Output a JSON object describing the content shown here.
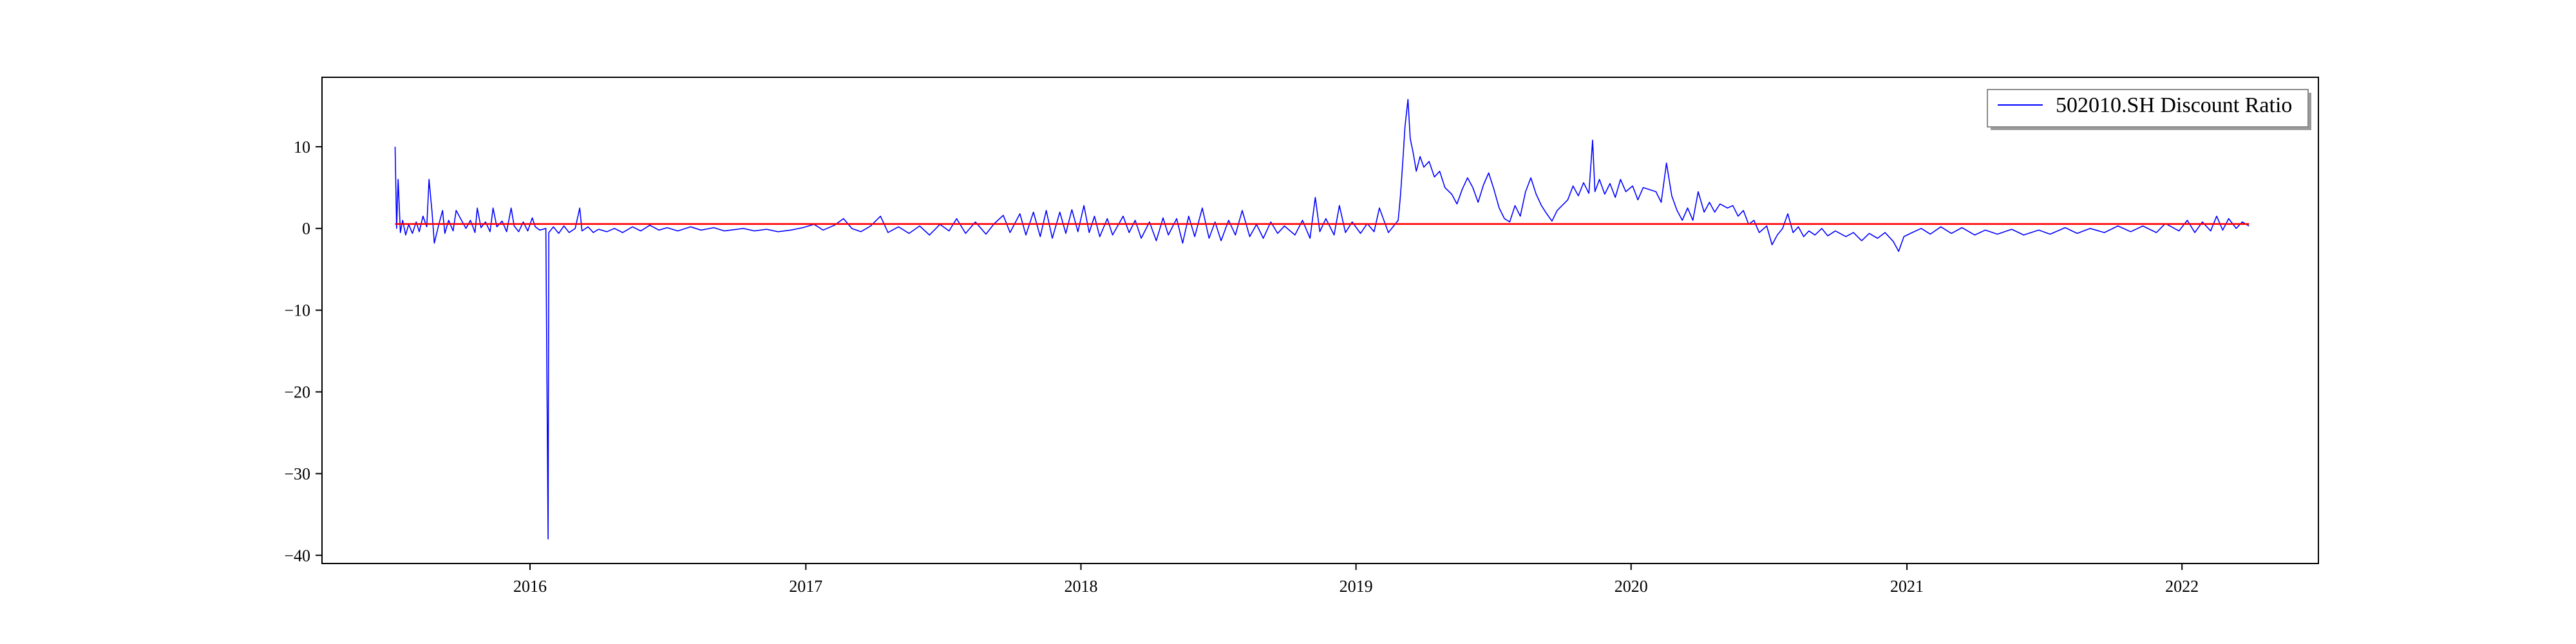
{
  "chart_data": {
    "type": "line",
    "title": "",
    "xlabel": "",
    "ylabel": "",
    "x_ticks": [
      "2016",
      "2017",
      "2018",
      "2019",
      "2020",
      "2021",
      "2022"
    ],
    "y_ticks": [
      "10",
      "0",
      "−10",
      "−20",
      "−30",
      "−40"
    ],
    "xlim": [
      "2015-03-31",
      "2022-07-01"
    ],
    "ylim": [
      -41,
      18.5
    ],
    "grid": false,
    "legend_position": "top-right",
    "series": [
      {
        "name": "502010.SH Discount Ratio",
        "color": "#0000ff",
        "points": [
          [
            "2015-07-06",
            10.0
          ],
          [
            "2015-07-08",
            0.0
          ],
          [
            "2015-07-10",
            6.0
          ],
          [
            "2015-07-13",
            -0.5
          ],
          [
            "2015-07-16",
            1.0
          ],
          [
            "2015-07-20",
            -0.8
          ],
          [
            "2015-07-24",
            0.5
          ],
          [
            "2015-07-29",
            -0.6
          ],
          [
            "2015-08-03",
            0.8
          ],
          [
            "2015-08-07",
            -0.4
          ],
          [
            "2015-08-12",
            1.5
          ],
          [
            "2015-08-17",
            0.2
          ],
          [
            "2015-08-20",
            6.0
          ],
          [
            "2015-08-24",
            2.0
          ],
          [
            "2015-08-27",
            -1.8
          ],
          [
            "2015-09-02",
            0.5
          ],
          [
            "2015-09-07",
            2.2
          ],
          [
            "2015-09-10",
            -0.6
          ],
          [
            "2015-09-15",
            1.0
          ],
          [
            "2015-09-21",
            -0.3
          ],
          [
            "2015-09-25",
            2.2
          ],
          [
            "2015-10-08",
            0.0
          ],
          [
            "2015-10-14",
            1.0
          ],
          [
            "2015-10-20",
            -0.5
          ],
          [
            "2015-10-23",
            2.5
          ],
          [
            "2015-10-28",
            0.1
          ],
          [
            "2015-11-03",
            0.8
          ],
          [
            "2015-11-09",
            -0.4
          ],
          [
            "2015-11-13",
            2.5
          ],
          [
            "2015-11-18",
            0.2
          ],
          [
            "2015-11-25",
            0.9
          ],
          [
            "2015-12-01",
            -0.4
          ],
          [
            "2015-12-07",
            2.5
          ],
          [
            "2015-12-11",
            0.3
          ],
          [
            "2015-12-17",
            -0.4
          ],
          [
            "2015-12-23",
            0.8
          ],
          [
            "2015-12-29",
            -0.3
          ],
          [
            "2016-01-04",
            1.3
          ],
          [
            "2016-01-08",
            0.2
          ],
          [
            "2016-01-14",
            -0.2
          ],
          [
            "2016-01-22",
            0.0
          ],
          [
            "2016-01-25",
            -38.0
          ],
          [
            "2016-01-26",
            -0.5
          ],
          [
            "2016-02-01",
            0.2
          ],
          [
            "2016-02-08",
            -0.6
          ],
          [
            "2016-02-15",
            0.3
          ],
          [
            "2016-02-22",
            -0.5
          ],
          [
            "2016-03-01",
            0.0
          ],
          [
            "2016-03-07",
            2.5
          ],
          [
            "2016-03-10",
            -0.3
          ],
          [
            "2016-03-18",
            0.2
          ],
          [
            "2016-03-25",
            -0.5
          ],
          [
            "2016-04-01",
            -0.1
          ],
          [
            "2016-04-12",
            -0.4
          ],
          [
            "2016-04-22",
            0.0
          ],
          [
            "2016-05-03",
            -0.5
          ],
          [
            "2016-05-16",
            0.2
          ],
          [
            "2016-05-27",
            -0.3
          ],
          [
            "2016-06-08",
            0.4
          ],
          [
            "2016-06-20",
            -0.2
          ],
          [
            "2016-07-01",
            0.1
          ],
          [
            "2016-07-15",
            -0.3
          ],
          [
            "2016-08-01",
            0.2
          ],
          [
            "2016-08-15",
            -0.2
          ],
          [
            "2016-09-01",
            0.1
          ],
          [
            "2016-09-15",
            -0.3
          ],
          [
            "2016-10-10",
            0.0
          ],
          [
            "2016-10-25",
            -0.3
          ],
          [
            "2016-11-10",
            -0.1
          ],
          [
            "2016-11-25",
            -0.4
          ],
          [
            "2016-12-12",
            -0.2
          ],
          [
            "2016-12-28",
            0.1
          ],
          [
            "2017-01-12",
            0.5
          ],
          [
            "2017-01-24",
            -0.2
          ],
          [
            "2017-02-08",
            0.4
          ],
          [
            "2017-02-20",
            1.2
          ],
          [
            "2017-03-03",
            0.0
          ],
          [
            "2017-03-15",
            -0.4
          ],
          [
            "2017-03-28",
            0.3
          ],
          [
            "2017-04-10",
            1.5
          ],
          [
            "2017-04-20",
            -0.5
          ],
          [
            "2017-05-04",
            0.2
          ],
          [
            "2017-05-18",
            -0.6
          ],
          [
            "2017-06-01",
            0.3
          ],
          [
            "2017-06-14",
            -0.8
          ],
          [
            "2017-06-28",
            0.5
          ],
          [
            "2017-07-10",
            -0.3
          ],
          [
            "2017-07-20",
            1.2
          ],
          [
            "2017-08-01",
            -0.6
          ],
          [
            "2017-08-14",
            0.8
          ],
          [
            "2017-08-28",
            -0.7
          ],
          [
            "2017-09-08",
            0.6
          ],
          [
            "2017-09-20",
            1.6
          ],
          [
            "2017-09-29",
            -0.5
          ],
          [
            "2017-10-12",
            1.8
          ],
          [
            "2017-10-20",
            -0.8
          ],
          [
            "2017-10-30",
            2.0
          ],
          [
            "2017-11-08",
            -1.0
          ],
          [
            "2017-11-16",
            2.2
          ],
          [
            "2017-11-24",
            -1.2
          ],
          [
            "2017-12-04",
            2.0
          ],
          [
            "2017-12-12",
            -0.6
          ],
          [
            "2017-12-20",
            2.3
          ],
          [
            "2017-12-28",
            -0.4
          ],
          [
            "2018-01-05",
            2.8
          ],
          [
            "2018-01-12",
            -0.5
          ],
          [
            "2018-01-19",
            1.5
          ],
          [
            "2018-01-26",
            -1.0
          ],
          [
            "2018-02-05",
            1.2
          ],
          [
            "2018-02-12",
            -0.8
          ],
          [
            "2018-02-26",
            1.5
          ],
          [
            "2018-03-06",
            -0.5
          ],
          [
            "2018-03-14",
            1.0
          ],
          [
            "2018-03-22",
            -1.2
          ],
          [
            "2018-04-02",
            0.8
          ],
          [
            "2018-04-11",
            -1.5
          ],
          [
            "2018-04-20",
            1.3
          ],
          [
            "2018-04-27",
            -0.8
          ],
          [
            "2018-05-08",
            1.2
          ],
          [
            "2018-05-16",
            -1.8
          ],
          [
            "2018-05-24",
            1.5
          ],
          [
            "2018-06-01",
            -1.0
          ],
          [
            "2018-06-11",
            2.5
          ],
          [
            "2018-06-20",
            -1.2
          ],
          [
            "2018-06-28",
            0.8
          ],
          [
            "2018-07-06",
            -1.5
          ],
          [
            "2018-07-16",
            1.0
          ],
          [
            "2018-07-25",
            -0.8
          ],
          [
            "2018-08-03",
            2.2
          ],
          [
            "2018-08-13",
            -1.0
          ],
          [
            "2018-08-22",
            0.5
          ],
          [
            "2018-08-31",
            -1.2
          ],
          [
            "2018-09-10",
            0.8
          ],
          [
            "2018-09-19",
            -0.6
          ],
          [
            "2018-09-28",
            0.3
          ],
          [
            "2018-10-12",
            -0.8
          ],
          [
            "2018-10-22",
            1.0
          ],
          [
            "2018-11-01",
            -1.2
          ],
          [
            "2018-11-08",
            3.8
          ],
          [
            "2018-11-14",
            -0.4
          ],
          [
            "2018-11-22",
            1.2
          ],
          [
            "2018-12-03",
            -0.8
          ],
          [
            "2018-12-10",
            2.8
          ],
          [
            "2018-12-18",
            -0.5
          ],
          [
            "2018-12-27",
            0.8
          ],
          [
            "2019-01-07",
            -0.6
          ],
          [
            "2019-01-16",
            0.6
          ],
          [
            "2019-01-25",
            -0.4
          ],
          [
            "2019-02-01",
            2.5
          ],
          [
            "2019-02-13",
            -0.5
          ],
          [
            "2019-02-20",
            0.3
          ],
          [
            "2019-02-26",
            1.0
          ],
          [
            "2019-03-01",
            4.0
          ],
          [
            "2019-03-04",
            8.0
          ],
          [
            "2019-03-07",
            12.5
          ],
          [
            "2019-03-11",
            15.8
          ],
          [
            "2019-03-14",
            11.0
          ],
          [
            "2019-03-18",
            9.2
          ],
          [
            "2019-03-22",
            7.0
          ],
          [
            "2019-03-27",
            8.8
          ],
          [
            "2019-04-01",
            7.5
          ],
          [
            "2019-04-08",
            8.2
          ],
          [
            "2019-04-15",
            6.3
          ],
          [
            "2019-04-22",
            7.0
          ],
          [
            "2019-04-29",
            5.0
          ],
          [
            "2019-05-08",
            4.2
          ],
          [
            "2019-05-15",
            3.0
          ],
          [
            "2019-05-22",
            4.8
          ],
          [
            "2019-05-29",
            6.2
          ],
          [
            "2019-06-05",
            5.0
          ],
          [
            "2019-06-12",
            3.2
          ],
          [
            "2019-06-19",
            5.3
          ],
          [
            "2019-06-26",
            6.8
          ],
          [
            "2019-07-03",
            4.8
          ],
          [
            "2019-07-10",
            2.5
          ],
          [
            "2019-07-17",
            1.2
          ],
          [
            "2019-07-24",
            0.8
          ],
          [
            "2019-07-31",
            2.8
          ],
          [
            "2019-08-07",
            1.5
          ],
          [
            "2019-08-14",
            4.5
          ],
          [
            "2019-08-21",
            6.2
          ],
          [
            "2019-08-28",
            4.2
          ],
          [
            "2019-09-04",
            2.8
          ],
          [
            "2019-09-11",
            1.8
          ],
          [
            "2019-09-18",
            0.9
          ],
          [
            "2019-09-25",
            2.2
          ],
          [
            "2019-10-09",
            3.5
          ],
          [
            "2019-10-16",
            5.2
          ],
          [
            "2019-10-23",
            4.0
          ],
          [
            "2019-10-30",
            5.6
          ],
          [
            "2019-11-06",
            4.3
          ],
          [
            "2019-11-11",
            10.8
          ],
          [
            "2019-11-14",
            4.5
          ],
          [
            "2019-11-20",
            6.0
          ],
          [
            "2019-11-27",
            4.2
          ],
          [
            "2019-12-04",
            5.5
          ],
          [
            "2019-12-11",
            3.8
          ],
          [
            "2019-12-18",
            6.0
          ],
          [
            "2019-12-25",
            4.5
          ],
          [
            "2020-01-03",
            5.2
          ],
          [
            "2020-01-10",
            3.5
          ],
          [
            "2020-01-17",
            5.0
          ],
          [
            "2020-02-03",
            4.5
          ],
          [
            "2020-02-10",
            3.2
          ],
          [
            "2020-02-17",
            8.0
          ],
          [
            "2020-02-24",
            4.0
          ],
          [
            "2020-03-02",
            2.2
          ],
          [
            "2020-03-09",
            1.0
          ],
          [
            "2020-03-16",
            2.5
          ],
          [
            "2020-03-23",
            1.0
          ],
          [
            "2020-03-30",
            4.5
          ],
          [
            "2020-04-07",
            2.0
          ],
          [
            "2020-04-14",
            3.2
          ],
          [
            "2020-04-21",
            2.0
          ],
          [
            "2020-04-28",
            3.0
          ],
          [
            "2020-05-08",
            2.5
          ],
          [
            "2020-05-15",
            2.8
          ],
          [
            "2020-05-22",
            1.5
          ],
          [
            "2020-05-29",
            2.2
          ],
          [
            "2020-06-05",
            0.5
          ],
          [
            "2020-06-12",
            1.0
          ],
          [
            "2020-06-19",
            -0.5
          ],
          [
            "2020-06-29",
            0.3
          ],
          [
            "2020-07-06",
            -2.0
          ],
          [
            "2020-07-13",
            -0.8
          ],
          [
            "2020-07-20",
            0.0
          ],
          [
            "2020-07-27",
            1.8
          ],
          [
            "2020-08-03",
            -0.5
          ],
          [
            "2020-08-10",
            0.2
          ],
          [
            "2020-08-17",
            -1.0
          ],
          [
            "2020-08-24",
            -0.3
          ],
          [
            "2020-09-01",
            -0.8
          ],
          [
            "2020-09-10",
            0.0
          ],
          [
            "2020-09-18",
            -0.9
          ],
          [
            "2020-09-28",
            -0.3
          ],
          [
            "2020-10-12",
            -1.0
          ],
          [
            "2020-10-22",
            -0.5
          ],
          [
            "2020-11-02",
            -1.5
          ],
          [
            "2020-11-12",
            -0.6
          ],
          [
            "2020-11-23",
            -1.2
          ],
          [
            "2020-12-03",
            -0.5
          ],
          [
            "2020-12-14",
            -1.6
          ],
          [
            "2020-12-21",
            -2.8
          ],
          [
            "2020-12-28",
            -1.0
          ],
          [
            "2021-01-08",
            -0.5
          ],
          [
            "2021-01-20",
            0.0
          ],
          [
            "2021-02-01",
            -0.7
          ],
          [
            "2021-02-15",
            0.2
          ],
          [
            "2021-03-01",
            -0.6
          ],
          [
            "2021-03-15",
            0.1
          ],
          [
            "2021-04-01",
            -0.8
          ],
          [
            "2021-04-15",
            -0.2
          ],
          [
            "2021-05-01",
            -0.7
          ],
          [
            "2021-05-20",
            -0.1
          ],
          [
            "2021-06-05",
            -0.8
          ],
          [
            "2021-06-25",
            -0.2
          ],
          [
            "2021-07-10",
            -0.7
          ],
          [
            "2021-07-30",
            0.1
          ],
          [
            "2021-08-15",
            -0.6
          ],
          [
            "2021-09-01",
            0.0
          ],
          [
            "2021-09-20",
            -0.5
          ],
          [
            "2021-10-08",
            0.3
          ],
          [
            "2021-10-25",
            -0.4
          ],
          [
            "2021-11-10",
            0.3
          ],
          [
            "2021-11-28",
            -0.5
          ],
          [
            "2021-12-10",
            0.6
          ],
          [
            "2021-12-28",
            -0.3
          ],
          [
            "2022-01-08",
            1.0
          ],
          [
            "2022-01-18",
            -0.5
          ],
          [
            "2022-01-28",
            0.8
          ],
          [
            "2022-02-08",
            -0.3
          ],
          [
            "2022-02-16",
            1.5
          ],
          [
            "2022-02-24",
            -0.2
          ],
          [
            "2022-03-04",
            1.2
          ],
          [
            "2022-03-14",
            0.0
          ],
          [
            "2022-03-22",
            0.8
          ],
          [
            "2022-03-31",
            0.3
          ]
        ]
      },
      {
        "color": "#ff0000",
        "points": [
          [
            "2015-07-06",
            0.55
          ],
          [
            "2022-03-31",
            0.55
          ]
        ]
      }
    ]
  }
}
